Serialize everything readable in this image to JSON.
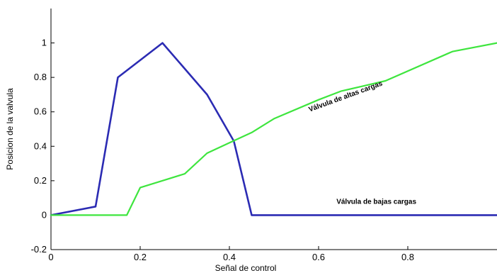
{
  "chart_data": {
    "type": "line",
    "title": "",
    "xlabel": "Señal de control",
    "ylabel": "Posicion de la valvula",
    "xlim": [
      0,
      1
    ],
    "ylim": [
      -0.2,
      1.2
    ],
    "grid": false,
    "xticks": [
      0,
      0.2,
      0.4,
      0.6,
      0.8
    ],
    "xtick_labels": [
      "0",
      "0.2",
      "0.4",
      "0.6",
      "0.8"
    ],
    "yticks": [
      -0.2,
      0,
      0.2,
      0.4,
      0.6,
      0.8,
      1
    ],
    "ytick_labels": [
      "-0.2",
      "0",
      "0.2",
      "0.4",
      "0.6",
      "0.8",
      "1"
    ],
    "series": [
      {
        "name": "Válvula de bajas cargas",
        "color": "#2b2bb3",
        "x": [
          0,
          0.1,
          0.15,
          0.25,
          0.35,
          0.41,
          0.45,
          1.0
        ],
        "y": [
          0,
          0.05,
          0.8,
          1.0,
          0.7,
          0.43,
          0.0,
          0.0
        ]
      },
      {
        "name": "Válvula de altas cargas",
        "color": "#3ee53e",
        "x": [
          0,
          0.17,
          0.2,
          0.3,
          0.35,
          0.4,
          0.45,
          0.5,
          0.6,
          0.65,
          0.75,
          0.9,
          1.0
        ],
        "y": [
          0,
          0.0,
          0.16,
          0.24,
          0.36,
          0.42,
          0.48,
          0.56,
          0.67,
          0.72,
          0.78,
          0.95,
          1.0
        ]
      }
    ],
    "annotations": [
      {
        "text": "Válvula de altas cargas",
        "x": 0.58,
        "y": 0.6,
        "angle": -20
      },
      {
        "text": "Válvula de bajas cargas",
        "x": 0.64,
        "y": 0.065,
        "angle": 0
      }
    ]
  }
}
